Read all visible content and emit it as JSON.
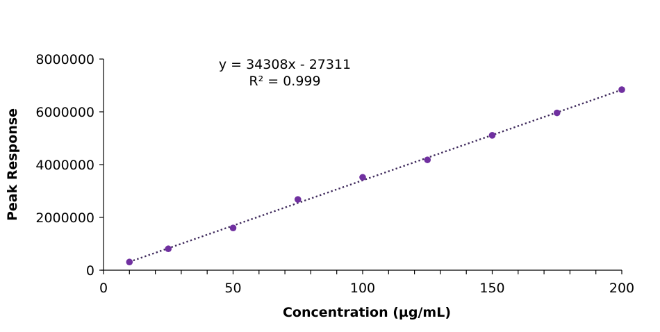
{
  "chart_data": {
    "type": "scatter",
    "title": "",
    "xlabel": "Concentration (µg/mL)",
    "ylabel": "Peak Response",
    "xlim": [
      0,
      200
    ],
    "ylim": [
      0,
      8000000
    ],
    "x_ticks": [
      0,
      50,
      100,
      150,
      200
    ],
    "x_minor_step": 10,
    "y_ticks": [
      0,
      2000000,
      4000000,
      6000000,
      8000000
    ],
    "grid": false,
    "legend": null,
    "series": [
      {
        "name": "Peak Response",
        "color": "#7030A0",
        "x": [
          10,
          25,
          50,
          75,
          100,
          125,
          150,
          175,
          200
        ],
        "y": [
          310000,
          810000,
          1600000,
          2680000,
          3520000,
          4180000,
          5110000,
          5960000,
          6840000
        ]
      }
    ],
    "trendline": {
      "type": "linear",
      "style": "dotted",
      "color": "#3F2A5C",
      "slope": 34308,
      "intercept": -27311,
      "x_range": [
        10,
        200
      ]
    },
    "annotations": {
      "equation": "y = 34308x - 27311",
      "r_squared": "R² = 0.999"
    }
  }
}
